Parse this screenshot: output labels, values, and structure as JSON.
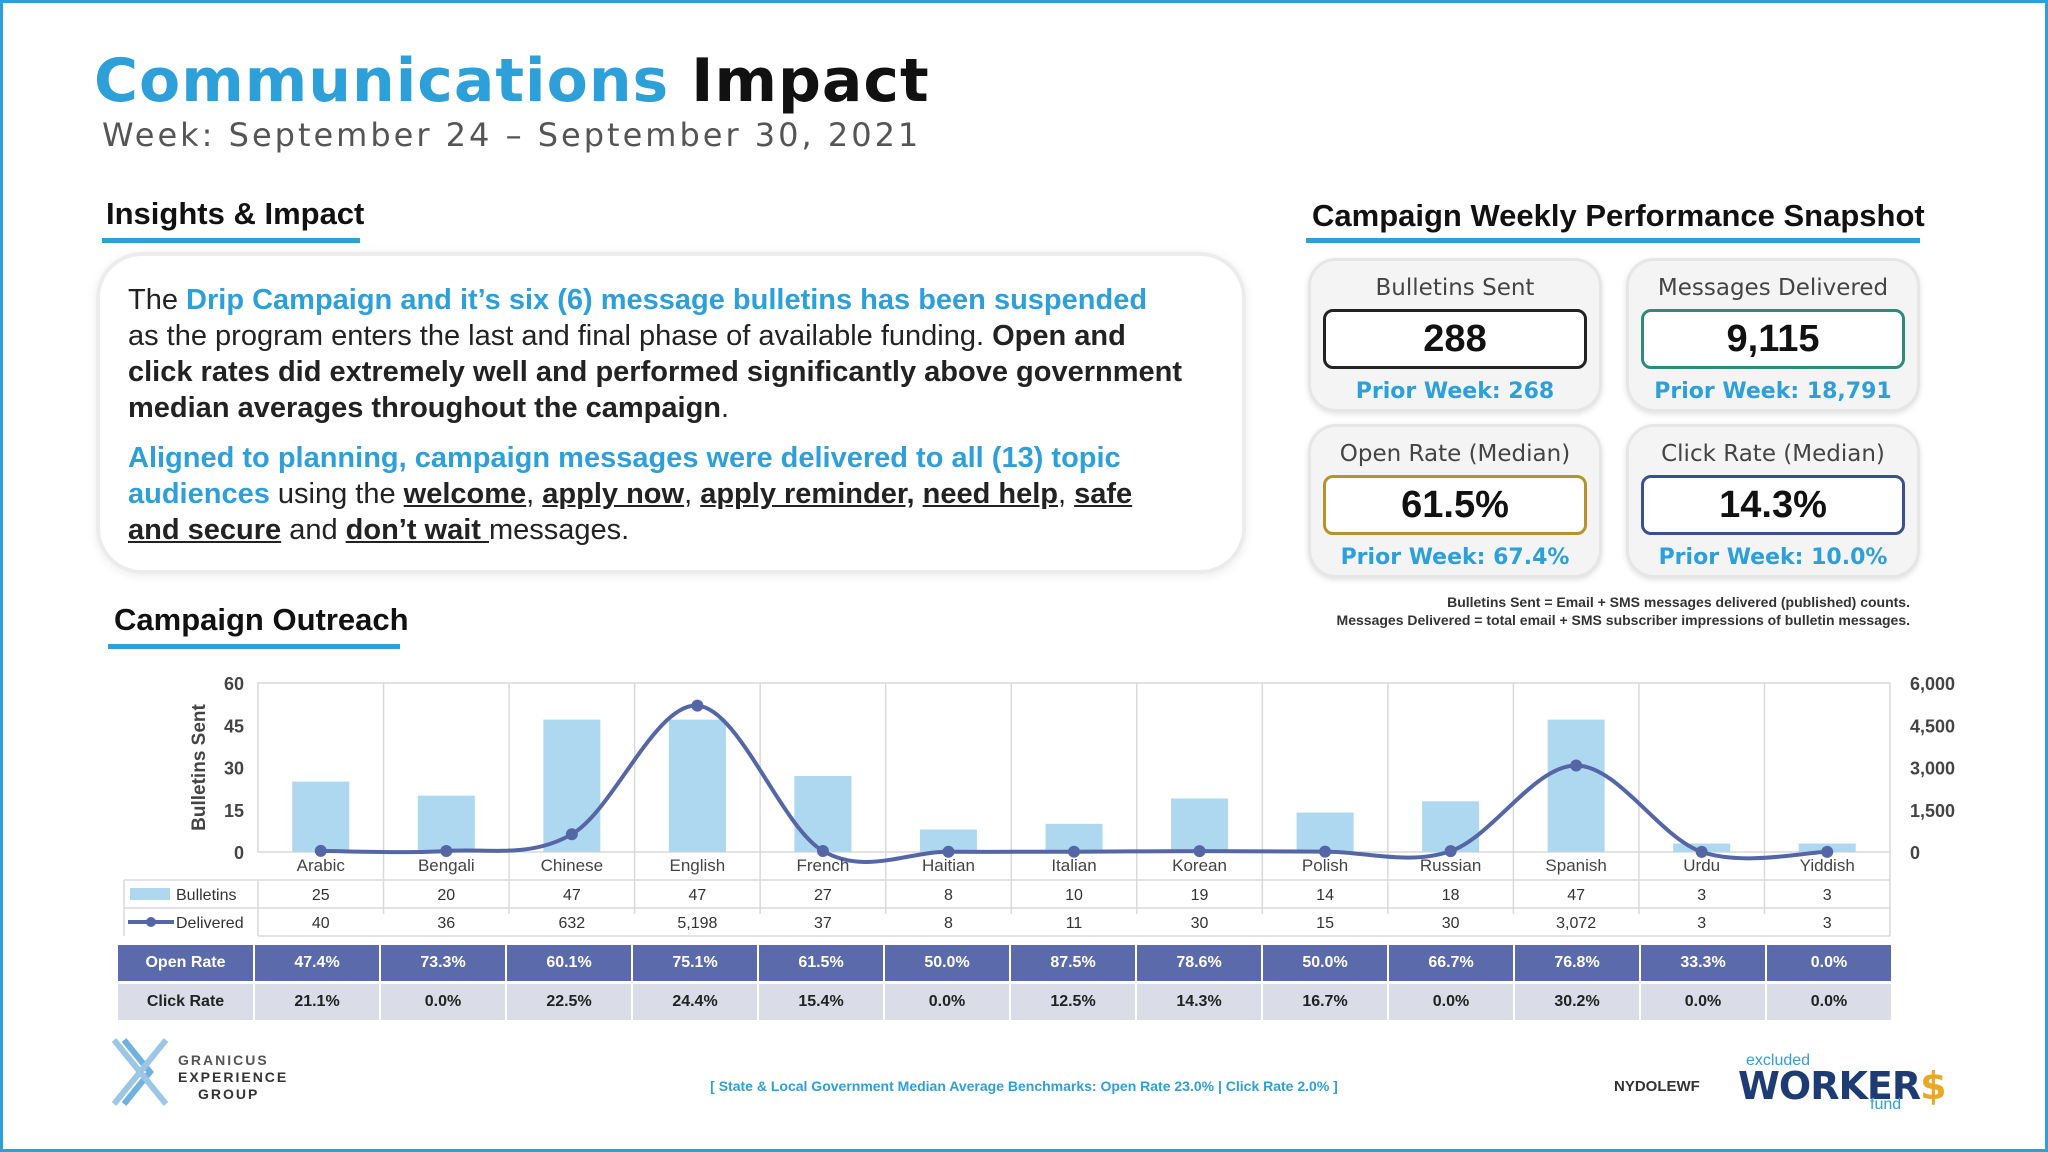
{
  "header": {
    "title_part1": "Communications",
    "title_part2": "Impact",
    "week": "Week: September 24 – September 30, 2021"
  },
  "insights": {
    "heading": "Insights & Impact",
    "p1": [
      {
        "t": "The ",
        "s": "n"
      },
      {
        "t": "Drip Campaign and it’s six (6) message bulletins has been suspended",
        "s": "blue"
      },
      {
        "t": " as the program enters the last and final phase of available funding. ",
        "s": "n"
      },
      {
        "t": "Open and click rates did extremely well and performed significantly above government median averages throughout the campaign",
        "s": "bold"
      },
      {
        "t": ".",
        "s": "n"
      }
    ],
    "p2": [
      {
        "t": "Aligned to planning, campaign messages were delivered to all (13) topic audiences",
        "s": "blue"
      },
      {
        "t": " using the ",
        "s": "n"
      },
      {
        "t": "welcome",
        "s": "ul"
      },
      {
        "t": ", ",
        "s": "n"
      },
      {
        "t": "apply now",
        "s": "ul"
      },
      {
        "t": ", ",
        "s": "n"
      },
      {
        "t": "apply reminder,",
        "s": "ul"
      },
      {
        "t": " ",
        "s": "n"
      },
      {
        "t": "need help",
        "s": "ul"
      },
      {
        "t": ", ",
        "s": "n"
      },
      {
        "t": "safe and secure",
        "s": "ul"
      },
      {
        "t": " and ",
        "s": "n"
      },
      {
        "t": "don’t wait ",
        "s": "ul"
      },
      {
        "t": "messages.",
        "s": "n"
      }
    ]
  },
  "snapshot": {
    "heading": "Campaign Weekly Performance Snapshot",
    "cards": [
      {
        "label": "Bulletins Sent",
        "value": "288",
        "prior": "Prior Week: 268",
        "border": "#222222"
      },
      {
        "label": "Messages Delivered",
        "value": "9,115",
        "prior": "Prior Week: 18,791",
        "border": "#2e8b7a"
      },
      {
        "label": "Open Rate (Median)",
        "value": "61.5%",
        "prior": "Prior Week: 67.4%",
        "border": "#b8912f"
      },
      {
        "label": "Click Rate (Median)",
        "value": "14.3%",
        "prior": "Prior Week: 10.0%",
        "border": "#3a4f8f"
      }
    ],
    "note1": "Bulletins Sent = Email + SMS messages delivered (published) counts.",
    "note2": "Messages Delivered = total email + SMS subscriber impressions of bulletin messages."
  },
  "outreach": {
    "heading": "Campaign Outreach"
  },
  "chart_data": {
    "type": "bar",
    "categories": [
      "Arabic",
      "Bengali",
      "Chinese",
      "English",
      "French",
      "Haitian",
      "Italian",
      "Korean",
      "Polish",
      "Russian",
      "Spanish",
      "Urdu",
      "Yiddish"
    ],
    "series": [
      {
        "name": "Bulletins",
        "type": "bar",
        "axis": "left",
        "values": [
          25,
          20,
          47,
          47,
          27,
          8,
          10,
          19,
          14,
          18,
          47,
          3,
          3
        ]
      },
      {
        "name": "Delivered",
        "type": "line",
        "axis": "right",
        "values": [
          40,
          36,
          632,
          5198,
          37,
          8,
          11,
          30,
          15,
          30,
          3072,
          3,
          3
        ]
      }
    ],
    "table_labels": {
      "bulletins": [
        "25",
        "20",
        "47",
        "47",
        "27",
        "8",
        "10",
        "19",
        "14",
        "18",
        "47",
        "3",
        "3"
      ],
      "delivered": [
        "40",
        "36",
        "632",
        "5,198",
        "37",
        "8",
        "11",
        "30",
        "15",
        "30",
        "3,072",
        "3",
        "3"
      ]
    },
    "ylabel": "Bulletins Sent",
    "ylim": [
      0,
      60
    ],
    "yticks": [
      "0",
      "15",
      "30",
      "45",
      "60"
    ],
    "y2lim": [
      0,
      6000
    ],
    "y2ticks": [
      "0",
      "1,500",
      "3,000",
      "4,500",
      "6,000"
    ],
    "grid": true,
    "colors": {
      "bar": "#aed8f0",
      "line": "#5566a6"
    }
  },
  "rates": {
    "open_label": "Open Rate",
    "open": [
      "47.4%",
      "73.3%",
      "60.1%",
      "75.1%",
      "61.5%",
      "50.0%",
      "87.5%",
      "78.6%",
      "50.0%",
      "66.7%",
      "76.8%",
      "33.3%",
      "0.0%"
    ],
    "click_label": "Click Rate",
    "click": [
      "21.1%",
      "0.0%",
      "22.5%",
      "24.4%",
      "15.4%",
      "0.0%",
      "12.5%",
      "14.3%",
      "16.7%",
      "0.0%",
      "30.2%",
      "0.0%",
      "0.0%"
    ]
  },
  "footer": {
    "logo_line1": "GRANICUS",
    "logo_line2": "EXPERIENCE",
    "logo_line3": "GROUP",
    "benchmark": "[ State & Local Government Median Average Benchmarks: Open Rate 23.0% | Click Rate 2.0% ]",
    "nydol": "NYDOLEWF",
    "wf_excluded": "excluded",
    "wf_workers": "WORKER",
    "wf_dollar": "$",
    "wf_fund": "fund"
  }
}
